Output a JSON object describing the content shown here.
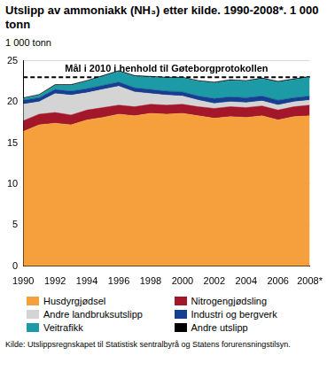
{
  "chart_data": {
    "type": "area",
    "title": "Utslipp av ammoniakk (NH₃) etter kilde. 1990-2008*. 1 000 tonn",
    "y_label": "1 000 tonn",
    "source": "Kilde: Utslippsregnskapet til Statistisk sentralbyrå og Statens forurensningstilsyn.",
    "categories": [
      "1990",
      null,
      "1992",
      null,
      "1994",
      null,
      "1996",
      null,
      "1998",
      null,
      "2000",
      null,
      "2002",
      null,
      "2004",
      null,
      "2006",
      null,
      "2008*"
    ],
    "stacked": true,
    "grid": true,
    "legend": "bottom",
    "ylim": [
      0,
      25
    ],
    "yticks": [
      0,
      5,
      10,
      15,
      20,
      25
    ],
    "series": [
      {
        "name": "Husdyrgjødsel",
        "color": "#f5a03c",
        "values": [
          16.4,
          17.2,
          17.4,
          17.2,
          17.8,
          18.1,
          18.5,
          18.3,
          18.6,
          18.5,
          18.6,
          18.3,
          18.0,
          18.2,
          18.1,
          18.3,
          17.8,
          18.2,
          18.3
        ]
      },
      {
        "name": "Nitrogengjødsling",
        "color": "#a3172b",
        "values": [
          1.3,
          1.3,
          1.3,
          1.2,
          1.2,
          1.2,
          1.1,
          1.1,
          1.1,
          1.1,
          1.1,
          1.1,
          1.2,
          1.2,
          1.2,
          1.2,
          1.2,
          1.2,
          1.3
        ]
      },
      {
        "name": "Andre landbruksutslipp",
        "color": "#d4d4d4",
        "values": [
          2.0,
          1.5,
          2.3,
          2.4,
          2.1,
          2.2,
          2.3,
          1.8,
          1.3,
          1.2,
          1.0,
          0.8,
          0.6,
          0.6,
          0.6,
          0.6,
          0.6,
          0.6,
          0.6
        ]
      },
      {
        "name": "Industri og bergverk",
        "color": "#173f8f",
        "values": [
          0.5,
          0.5,
          0.5,
          0.5,
          0.5,
          0.5,
          0.5,
          0.5,
          0.5,
          0.5,
          0.5,
          0.5,
          0.6,
          0.6,
          0.6,
          0.6,
          0.6,
          0.5,
          0.5
        ]
      },
      {
        "name": "Veitrafikk",
        "color": "#1c9aa6",
        "values": [
          0.2,
          0.3,
          0.5,
          0.7,
          0.9,
          1.1,
          1.3,
          1.4,
          1.5,
          1.6,
          1.7,
          1.8,
          1.9,
          2.0,
          2.0,
          2.1,
          2.2,
          2.2,
          2.3
        ]
      },
      {
        "name": "Andre utslipp",
        "color": "#000000",
        "values": [
          0.1,
          0.1,
          0.1,
          0.1,
          0.1,
          0.1,
          0.1,
          0.1,
          0.1,
          0.1,
          0.1,
          0.1,
          0.1,
          0.1,
          0.1,
          0.1,
          0.1,
          0.1,
          0.1
        ]
      }
    ],
    "annotations": [
      {
        "text": "Mål i 2010 i henhold til Gøteborgprotokollen",
        "value": 23,
        "line_style": "dashed",
        "color": "#000000"
      }
    ]
  }
}
